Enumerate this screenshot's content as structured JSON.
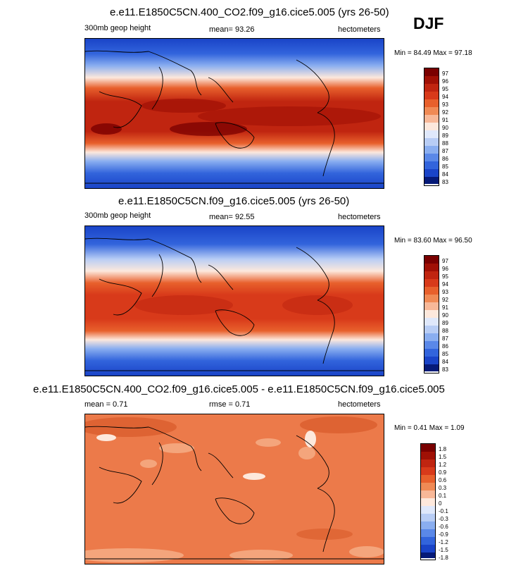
{
  "season": "DJF",
  "panels": [
    {
      "title": "e.e11.E1850C5CN.400_CO2.f09_g16.cice5.005 (yrs 26-50)",
      "left": "300mb geop height",
      "center": "mean=  93.26",
      "right": "hectometers",
      "minmax": "Min =  84.49 Max =  97.18",
      "levels": [
        "97",
        "96",
        "95",
        "94",
        "93",
        "92",
        "91",
        "90",
        "89",
        "88",
        "87",
        "86",
        "85",
        "84",
        "83"
      ]
    },
    {
      "title": "e.e11.E1850C5CN.f09_g16.cice5.005 (yrs 26-50)",
      "left": "300mb geop height",
      "center": "mean=  92.55",
      "right": "hectometers",
      "minmax": "Min =  83.60 Max =  96.50",
      "levels": [
        "97",
        "96",
        "95",
        "94",
        "93",
        "92",
        "91",
        "90",
        "89",
        "88",
        "87",
        "86",
        "85",
        "84",
        "83"
      ]
    },
    {
      "title": "e.e11.E1850C5CN.400_CO2.f09_g16.cice5.005 - e.e11.E1850C5CN.f09_g16.cice5.005",
      "left": "mean =   0.71",
      "center": "rmse =   0.71",
      "right": "hectometers",
      "minmax": "Min =  0.41 Max =   1.09",
      "levels": [
        "1.8",
        "1.5",
        "1.2",
        "0.9",
        "0.6",
        "0.3",
        "0.1",
        "0",
        "-0.1",
        "-0.3",
        "-0.6",
        "-0.9",
        "-1.2",
        "-1.5",
        "-1.8"
      ]
    }
  ],
  "colors": {
    "ramp": [
      "#7a0000",
      "#a01005",
      "#c02510",
      "#d83a1a",
      "#e8602c",
      "#f08a55",
      "#f8b898",
      "#fde8dc",
      "#dfe8fb",
      "#b8cdf5",
      "#8aaef0",
      "#5a88e8",
      "#3264dc",
      "#1a44c8",
      "#0a2aa0",
      "#061a78"
    ],
    "diff_bg": "#ec7a4a"
  }
}
